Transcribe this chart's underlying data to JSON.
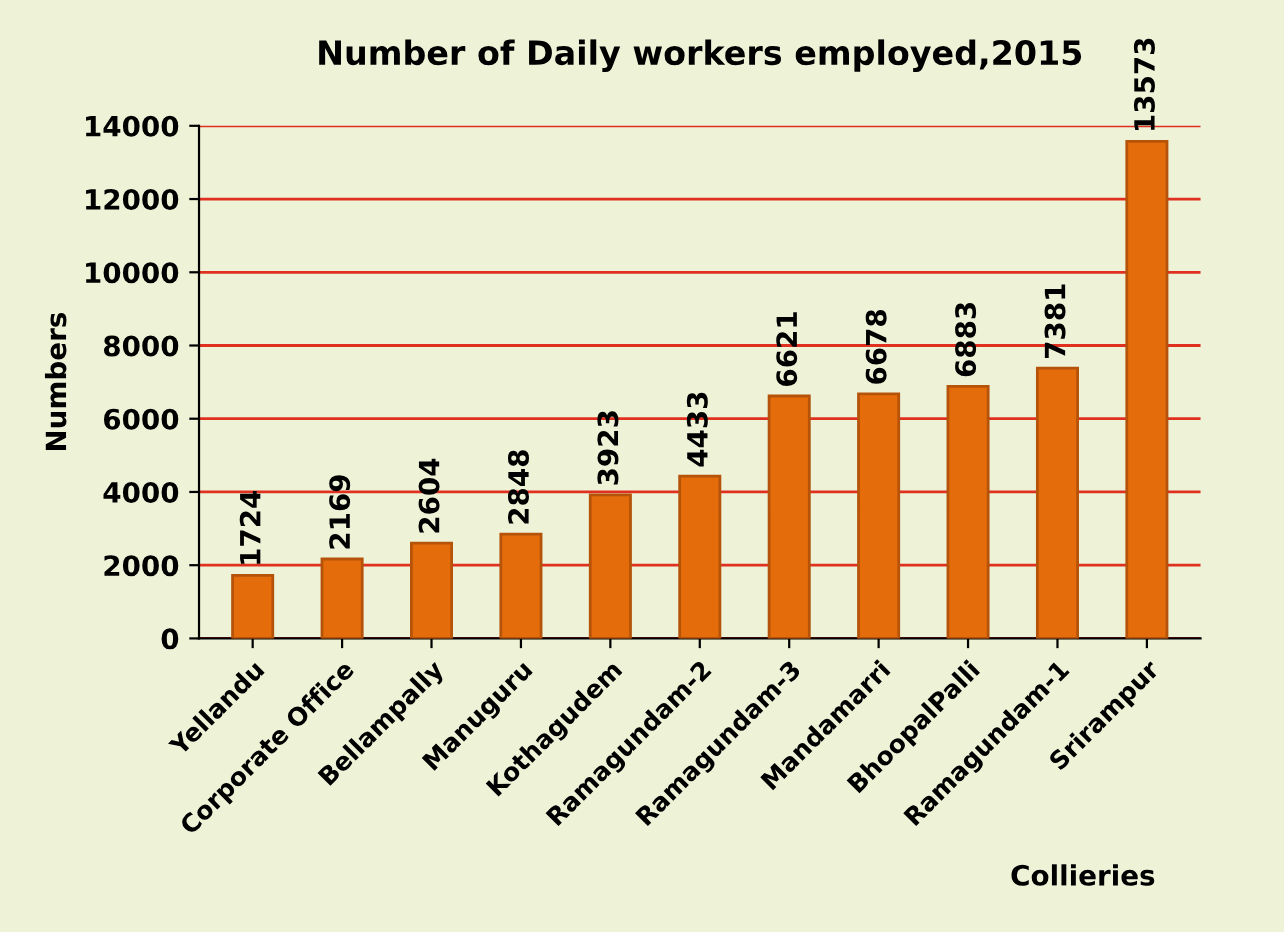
{
  "chart_data": {
    "type": "bar",
    "title": "Number of Daily workers employed,2015",
    "xlabel": "Collieries",
    "ylabel": "Numbers",
    "categories": [
      "Yellandu",
      "Corporate Office",
      "Bellampally",
      "Manuguru",
      "Kothagudem",
      "Ramagundam-2",
      "Ramagundam-3",
      "Mandamarri",
      "BhoopalPalli",
      "Ramagundam-1",
      "Srirampur"
    ],
    "values": [
      1724,
      2169,
      2604,
      2848,
      3923,
      4433,
      6621,
      6678,
      6883,
      7381,
      13573
    ],
    "color": "#e46c0a",
    "ylim": [
      0,
      14000
    ],
    "yticks": [
      0,
      2000,
      4000,
      6000,
      8000,
      10000,
      12000,
      14000
    ],
    "grid": "y",
    "data_labels": true
  }
}
